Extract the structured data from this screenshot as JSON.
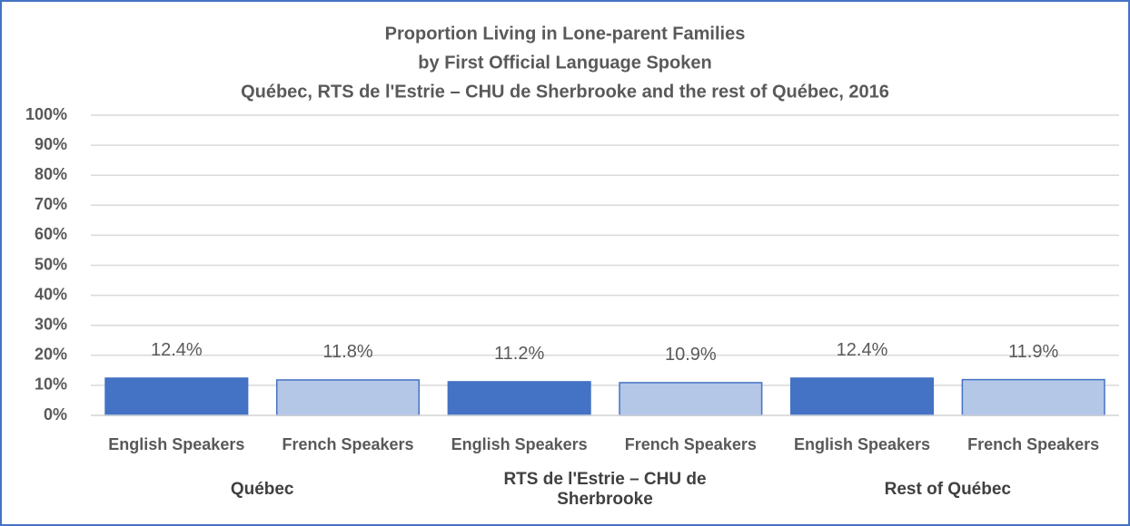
{
  "chart_data": {
    "type": "bar",
    "title": [
      "Proportion Living in Lone-parent Families",
      "by First Official Language Spoken"
    ],
    "subtitle": "Québec, RTS de l'Estrie – CHU de Sherbrooke and the rest of Québec, 2016",
    "categories": [
      "English Speakers",
      "French Speakers",
      "English Speakers",
      "French Speakers",
      "English Speakers",
      "French Speakers"
    ],
    "groups": [
      "Québec",
      "RTS de l'Estrie – CHU de Sherbrooke",
      "Rest of Québec"
    ],
    "values": [
      12.4,
      11.8,
      11.2,
      10.9,
      12.4,
      11.9
    ],
    "value_labels": [
      "12.4%",
      "11.8%",
      "11.2%",
      "10.9%",
      "12.4%",
      "11.9%"
    ],
    "colors": [
      "#4472c4",
      "#b4c7e7",
      "#4472c4",
      "#b4c7e7",
      "#4472c4",
      "#b4c7e7"
    ],
    "edge_color": "#4472c4",
    "ylim": [
      0,
      100
    ],
    "yticks": [
      {
        "value": 0,
        "label": "0%"
      },
      {
        "value": 10,
        "label": "10%"
      },
      {
        "value": 20,
        "label": "20%"
      },
      {
        "value": 30,
        "label": "30%"
      },
      {
        "value": 40,
        "label": "40%"
      },
      {
        "value": 50,
        "label": "50%"
      },
      {
        "value": 60,
        "label": "60%"
      },
      {
        "value": 70,
        "label": "70%"
      },
      {
        "value": 80,
        "label": "80%"
      },
      {
        "value": 90,
        "label": "90%"
      },
      {
        "value": 100,
        "label": "100%"
      }
    ],
    "grid": true
  }
}
